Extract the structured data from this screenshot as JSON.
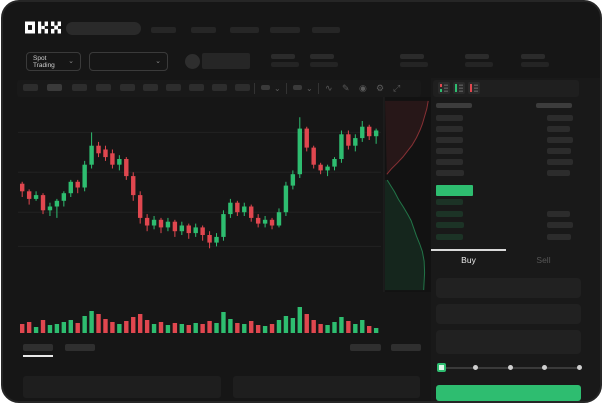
{
  "colors": {
    "up": "#2ebd70",
    "down": "#e0474f",
    "depth_ask_fill": "rgba(224,71,79,0.10)",
    "depth_bid_fill": "rgba(46,189,112,0.12)",
    "grid": "#222222",
    "bid_row_tint": "#1c3326"
  },
  "navbar": {
    "logo": "OKX",
    "nav_item_count": 5
  },
  "subheader": {
    "market_select_label": "Spot Trading",
    "chevron": "⌄",
    "stat_block_count": 5
  },
  "toolbar": {
    "interval_button_count": 10,
    "dropdown_chevron": "⌄",
    "icons": [
      {
        "name": "wave-icon",
        "glyph": "∿"
      },
      {
        "name": "draw-icon",
        "glyph": "✎"
      },
      {
        "name": "camera-icon",
        "glyph": "◉"
      },
      {
        "name": "settings-gear-icon",
        "glyph": "⚙"
      },
      {
        "name": "fullscreen-icon",
        "glyph": "⤢"
      }
    ]
  },
  "order_panel": {
    "view_modes": [
      "combined",
      "bids",
      "asks"
    ],
    "buy_tab_label": "Buy",
    "sell_tab_label": "Sell",
    "slider_steps": 5,
    "slider_active_index": 0,
    "input_field_count": 3
  },
  "orderbook": {
    "header": {
      "left_w": 36,
      "right_w": 36
    },
    "asks": [
      {
        "pw": 27,
        "aw": 26
      },
      {
        "pw": 27,
        "aw": 23
      },
      {
        "pw": 27,
        "aw": 26
      },
      {
        "pw": 27,
        "aw": 24
      },
      {
        "pw": 27,
        "aw": 26
      },
      {
        "pw": 28,
        "aw": 23
      }
    ],
    "last_price_bar_w": 37,
    "bids": [
      {
        "pw": 27,
        "aw": 0
      },
      {
        "pw": 27,
        "aw": 23
      },
      {
        "pw": 28,
        "aw": 26
      },
      {
        "pw": 27,
        "aw": 24
      }
    ]
  },
  "chart_data": {
    "type": "candlestick",
    "title": "",
    "price_unit_range": [
      0,
      100
    ],
    "gridlines_price": [
      84,
      63,
      42,
      24
    ],
    "candles": [
      [
        57,
        53,
        50,
        58
      ],
      [
        53,
        49,
        46,
        54
      ],
      [
        49,
        51,
        48,
        53
      ],
      [
        51,
        43,
        41,
        52
      ],
      [
        43,
        45,
        40,
        47
      ],
      [
        45,
        48,
        39,
        49
      ],
      [
        48,
        52,
        45,
        53
      ],
      [
        52,
        58,
        50,
        59
      ],
      [
        58,
        55,
        52,
        59
      ],
      [
        55,
        67,
        53,
        69
      ],
      [
        67,
        77,
        65,
        84
      ],
      [
        77,
        73,
        71,
        79
      ],
      [
        75,
        71,
        69,
        77
      ],
      [
        73,
        67,
        65,
        75
      ],
      [
        67,
        70,
        64,
        72
      ],
      [
        70,
        61,
        59,
        71
      ],
      [
        61,
        51,
        48,
        63
      ],
      [
        51,
        39,
        36,
        53
      ],
      [
        39,
        35,
        32,
        41
      ],
      [
        35,
        38,
        33,
        40
      ],
      [
        38,
        34,
        31,
        39
      ],
      [
        34,
        37,
        32,
        39
      ],
      [
        37,
        32,
        29,
        38
      ],
      [
        32,
        35,
        30,
        37
      ],
      [
        35,
        31,
        28,
        36
      ],
      [
        31,
        34,
        29,
        36
      ],
      [
        34,
        30,
        27,
        35
      ],
      [
        30,
        26,
        23,
        32
      ],
      [
        26,
        29,
        24,
        31
      ],
      [
        29,
        41,
        27,
        43
      ],
      [
        41,
        47,
        39,
        49
      ],
      [
        47,
        42,
        40,
        48
      ],
      [
        42,
        45,
        40,
        47
      ],
      [
        45,
        39,
        37,
        46
      ],
      [
        39,
        36,
        34,
        41
      ],
      [
        36,
        38,
        34,
        40
      ],
      [
        38,
        35,
        33,
        39
      ],
      [
        35,
        42,
        34,
        44
      ],
      [
        42,
        56,
        40,
        58
      ],
      [
        56,
        62,
        54,
        64
      ],
      [
        62,
        86,
        60,
        92
      ],
      [
        86,
        76,
        74,
        87
      ],
      [
        76,
        67,
        65,
        77
      ],
      [
        67,
        64,
        62,
        68
      ],
      [
        64,
        66,
        61,
        67
      ],
      [
        66,
        70,
        64,
        71
      ],
      [
        70,
        83,
        68,
        85
      ],
      [
        83,
        77,
        75,
        85
      ],
      [
        77,
        81,
        74,
        83
      ],
      [
        81,
        87,
        79,
        90
      ],
      [
        87,
        82,
        80,
        88
      ],
      [
        82,
        85,
        78,
        86
      ]
    ],
    "volumes": [
      9,
      11,
      6,
      13,
      8,
      9,
      11,
      13,
      10,
      17,
      22,
      19,
      14,
      11,
      9,
      12,
      16,
      19,
      13,
      9,
      11,
      8,
      10,
      9,
      8,
      10,
      9,
      12,
      10,
      21,
      14,
      10,
      9,
      12,
      8,
      7,
      9,
      13,
      17,
      15,
      26,
      19,
      13,
      9,
      8,
      11,
      16,
      12,
      9,
      13,
      7,
      5
    ],
    "depth": {
      "asks": [
        [
          0.01,
          0.96
        ],
        [
          0.05,
          0.93
        ],
        [
          0.09,
          0.88
        ],
        [
          0.13,
          0.83
        ],
        [
          0.16,
          0.78
        ],
        [
          0.2,
          0.7
        ],
        [
          0.24,
          0.6
        ],
        [
          0.27,
          0.5
        ],
        [
          0.3,
          0.4
        ],
        [
          0.33,
          0.28
        ],
        [
          0.36,
          0.15
        ],
        [
          0.39,
          0.04
        ]
      ],
      "bids": [
        [
          0.42,
          0.05
        ],
        [
          0.45,
          0.13
        ],
        [
          0.48,
          0.21
        ],
        [
          0.52,
          0.3
        ],
        [
          0.56,
          0.41
        ],
        [
          0.6,
          0.51
        ],
        [
          0.63,
          0.58
        ],
        [
          0.67,
          0.64
        ],
        [
          0.71,
          0.7
        ],
        [
          0.75,
          0.77
        ],
        [
          0.79,
          0.83
        ],
        [
          0.84,
          0.87
        ],
        [
          0.9,
          0.88
        ],
        [
          0.99,
          0.86
        ]
      ]
    }
  }
}
